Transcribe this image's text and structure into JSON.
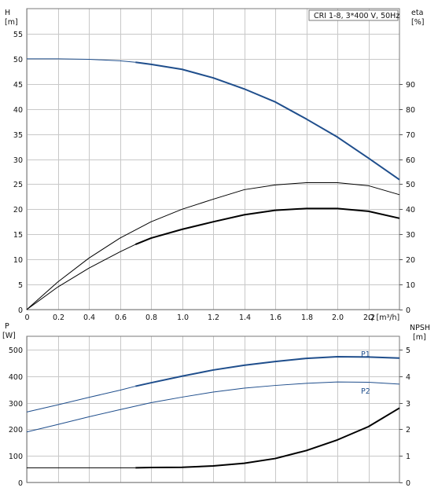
{
  "chart_data": [
    {
      "type": "line",
      "title": "CRI 1-8, 3*400 V, 50Hz",
      "xlabel": "Q [m³/h]",
      "xlim": [
        0,
        2.4
      ],
      "x_ticks": [
        "0",
        "0.2",
        "0.4",
        "0.6",
        "0.8",
        "1.0",
        "1.2",
        "1.4",
        "1.6",
        "1.8",
        "2.0",
        "2.2"
      ],
      "grid": true,
      "left_axis": {
        "label_line1": "H",
        "label_line2": "[m]",
        "lim": [
          0,
          60
        ],
        "ticks": [
          "0",
          "5",
          "10",
          "15",
          "20",
          "25",
          "30",
          "35",
          "40",
          "45",
          "50",
          "55"
        ]
      },
      "right_axis": {
        "label_line1": "eta",
        "label_line2": "[%]",
        "lim": [
          0,
          120
        ],
        "ticks": [
          "0",
          "10",
          "20",
          "30",
          "40",
          "50",
          "60",
          "70",
          "80",
          "90"
        ]
      },
      "series": [
        {
          "axis": "left",
          "color": "#1f4e8c",
          "width": 2,
          "x": [
            0,
            0.2,
            0.4,
            0.6,
            0.7,
            0.8,
            1.0,
            1.2,
            1.4,
            1.6,
            1.8,
            2.0,
            2.2,
            2.4
          ],
          "values": [
            50.0,
            50.0,
            49.9,
            49.6,
            49.3,
            48.9,
            47.9,
            46.2,
            44.0,
            41.4,
            38.0,
            34.4,
            30.2,
            25.9
          ],
          "bold_from": 0.7
        },
        {
          "axis": "right",
          "color": "#000000",
          "width": 1,
          "x": [
            0,
            0.2,
            0.4,
            0.6,
            0.8,
            1.0,
            1.2,
            1.4,
            1.6,
            1.8,
            2.0,
            2.2,
            2.4
          ],
          "values": [
            0,
            11,
            20.5,
            28.5,
            35,
            40,
            44,
            47.8,
            49.7,
            50.6,
            50.6,
            49.4,
            45.8
          ]
        },
        {
          "axis": "right",
          "color": "#000000",
          "width": 2,
          "x": [
            0,
            0.2,
            0.4,
            0.6,
            0.7,
            0.8,
            1.0,
            1.2,
            1.4,
            1.6,
            1.8,
            2.0,
            2.2,
            2.4
          ],
          "values": [
            0,
            9,
            16.5,
            23,
            26,
            28.5,
            32,
            35,
            37.8,
            39.6,
            40.3,
            40.3,
            39.2,
            36.4
          ],
          "bold_from": 0.7
        }
      ]
    },
    {
      "type": "line",
      "xlim": [
        0,
        2.4
      ],
      "grid": true,
      "left_axis": {
        "label_line1": "P",
        "label_line2": "[W]",
        "lim": [
          0,
          550
        ],
        "ticks": [
          "0",
          "100",
          "200",
          "300",
          "400",
          "500"
        ]
      },
      "right_axis": {
        "label_line1": "NPSH",
        "label_line2": "[m]",
        "lim": [
          0,
          5.5
        ],
        "ticks": [
          "0",
          "1",
          "2",
          "3",
          "4",
          "5"
        ]
      },
      "series": [
        {
          "name": "P1",
          "axis": "left",
          "color": "#1f4e8c",
          "width": 2,
          "x": [
            0,
            0.2,
            0.4,
            0.6,
            0.7,
            0.8,
            1.0,
            1.2,
            1.4,
            1.6,
            1.8,
            2.0,
            2.2,
            2.4
          ],
          "values": [
            265,
            292,
            320,
            347,
            362,
            375,
            400,
            423,
            441,
            455,
            467,
            473,
            472,
            468
          ],
          "bold_from": 0.7
        },
        {
          "name": "P2",
          "axis": "left",
          "color": "#1f4e8c",
          "width": 1,
          "x": [
            0,
            0.2,
            0.4,
            0.6,
            0.8,
            1.0,
            1.2,
            1.4,
            1.6,
            1.8,
            2.0,
            2.2,
            2.4
          ],
          "values": [
            190,
            218,
            247,
            274,
            300,
            321,
            340,
            355,
            365,
            373,
            378,
            377,
            370
          ]
        },
        {
          "axis": "right",
          "color": "#000000",
          "width": 2,
          "x": [
            0,
            0.2,
            0.4,
            0.6,
            0.7,
            0.8,
            1.0,
            1.2,
            1.4,
            1.6,
            1.8,
            2.0,
            2.2,
            2.4
          ],
          "values": [
            0.55,
            0.55,
            0.55,
            0.55,
            0.55,
            0.56,
            0.57,
            0.62,
            0.72,
            0.9,
            1.2,
            1.6,
            2.1,
            2.8
          ],
          "bold_from": 0.7
        }
      ]
    }
  ]
}
